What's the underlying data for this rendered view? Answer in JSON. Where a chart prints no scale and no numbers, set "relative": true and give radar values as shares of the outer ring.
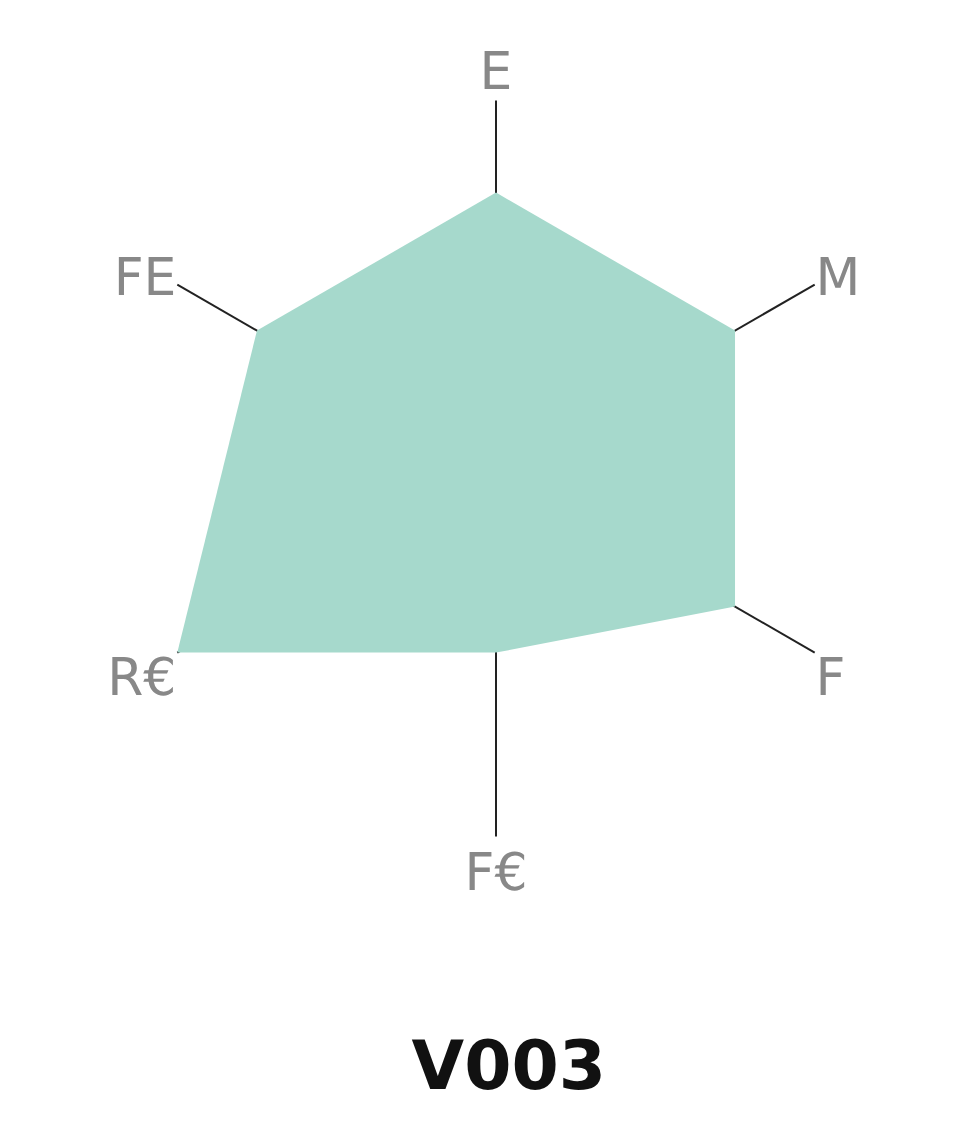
{
  "chart_data": {
    "type": "radar",
    "title": "V003",
    "relative": true,
    "categories": [
      "E",
      "M",
      "F",
      "F€",
      "R€",
      "FE"
    ],
    "series": [
      {
        "color": "#a6d9cc",
        "values": [
          0.75,
          0.75,
          0.75,
          0.5,
          1,
          0.75
        ]
      }
    ],
    "grid": "x",
    "marker": "none"
  }
}
